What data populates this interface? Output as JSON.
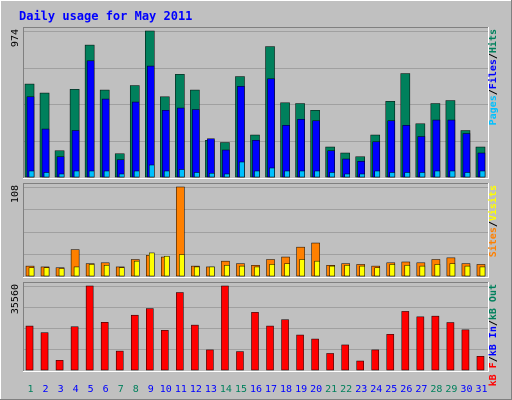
{
  "colors": {
    "background": "#c0c0c0",
    "gridline": "#a0a0a0",
    "hits": "#00805c",
    "files": "#0000ff",
    "pages": "#00c0ff",
    "visits": "#ffff00",
    "sites": "#ff8000",
    "kbytes": "#ff0000",
    "title": "#0000ff",
    "weekend_day": "#00805c",
    "weekday_day": "#0000ff"
  },
  "chart_data": {
    "type": "bar",
    "title": "Daily usage for May 2011",
    "categories": [
      "1",
      "2",
      "3",
      "4",
      "5",
      "6",
      "7",
      "8",
      "9",
      "10",
      "11",
      "12",
      "13",
      "14",
      "15",
      "16",
      "17",
      "18",
      "19",
      "20",
      "21",
      "22",
      "23",
      "24",
      "25",
      "26",
      "27",
      "28",
      "29",
      "30",
      "31"
    ],
    "weekend_days": [
      "1",
      "7",
      "8",
      "14",
      "15",
      "21",
      "22",
      "28",
      "29"
    ],
    "panels": [
      {
        "id": "hits",
        "max_label": "974",
        "ylim": [
          0,
          974
        ],
        "right_labels": [
          {
            "text": "Pages",
            "color": "#00c0ff"
          },
          {
            "text": "/",
            "color": "#000000"
          },
          {
            "text": "Files",
            "color": "#0000ff"
          },
          {
            "text": "/",
            "color": "#000000"
          },
          {
            "text": "Hits",
            "color": "#00805c"
          }
        ],
        "series": [
          {
            "name": "Hits",
            "color": "#00805c",
            "values": [
              620,
              560,
              175,
              585,
              880,
              580,
              155,
              610,
              974,
              535,
              685,
              580,
              245,
              230,
              670,
              280,
              870,
              495,
              490,
              445,
              200,
              160,
              135,
              280,
              505,
              690,
              355,
              490,
              510,
              310,
              200
            ]
          },
          {
            "name": "Files",
            "color": "#0000ff",
            "values": [
              535,
              320,
              135,
              310,
              775,
              520,
              115,
              500,
              740,
              445,
              460,
              450,
              255,
              180,
              605,
              245,
              655,
              345,
              385,
              375,
              175,
              120,
              105,
              235,
              375,
              345,
              270,
              380,
              380,
              290,
              160
            ]
          },
          {
            "name": "Pages",
            "color": "#00c0ff",
            "values": [
              40,
              30,
              20,
              40,
              40,
              40,
              20,
              40,
              80,
              40,
              50,
              30,
              25,
              20,
              100,
              40,
              60,
              40,
              40,
              40,
              30,
              20,
              20,
              40,
              30,
              30,
              30,
              40,
              40,
              30,
              40
            ]
          }
        ]
      },
      {
        "id": "visits",
        "max_label": "108",
        "ylim": [
          0,
          108
        ],
        "right_labels": [
          {
            "text": "Sites",
            "color": "#ff8000"
          },
          {
            "text": "/",
            "color": "#000000"
          },
          {
            "text": "Visits",
            "color": "#ffff00"
          }
        ],
        "series": [
          {
            "name": "Sites",
            "color": "#ff8000",
            "values": [
              12,
              11,
              10,
              32,
              15,
              16,
              11,
              20,
              25,
              23,
              108,
              12,
              11,
              18,
              15,
              13,
              20,
              23,
              35,
              40,
              13,
              15,
              14,
              12,
              16,
              17,
              16,
              20,
              22,
              15,
              14
            ]
          },
          {
            "name": "Visits",
            "color": "#ffff00",
            "values": [
              10,
              10,
              9,
              11,
              14,
              13,
              10,
              18,
              28,
              24,
              26,
              11,
              11,
              13,
              12,
              11,
              14,
              15,
              20,
              18,
              12,
              13,
              12,
              10,
              14,
              13,
              12,
              14,
              15,
              12,
              11
            ]
          }
        ]
      },
      {
        "id": "kbytes",
        "max_label": "35560",
        "ylim": [
          0,
          35560
        ],
        "right_labels": [
          {
            "text": "kB F",
            "color": "#ff0000"
          },
          {
            "text": "/",
            "color": "#000000"
          },
          {
            "text": "kB In",
            "color": "#0000ff"
          },
          {
            "text": "/",
            "color": "#000000"
          },
          {
            "text": "kB Out",
            "color": "#00805c"
          }
        ],
        "series": [
          {
            "name": "kB F",
            "color": "#ff0000",
            "values": [
              18600,
              15800,
              4100,
              18300,
              35560,
              20200,
              8000,
              23200,
              26000,
              16800,
              32800,
              19000,
              8500,
              35560,
              7800,
              24400,
              18600,
              21300,
              14800,
              13100,
              7000,
              10600,
              3800,
              8500,
              15100,
              24800,
              22500,
              22800,
              20100,
              17000,
              5800
            ]
          }
        ]
      }
    ]
  }
}
